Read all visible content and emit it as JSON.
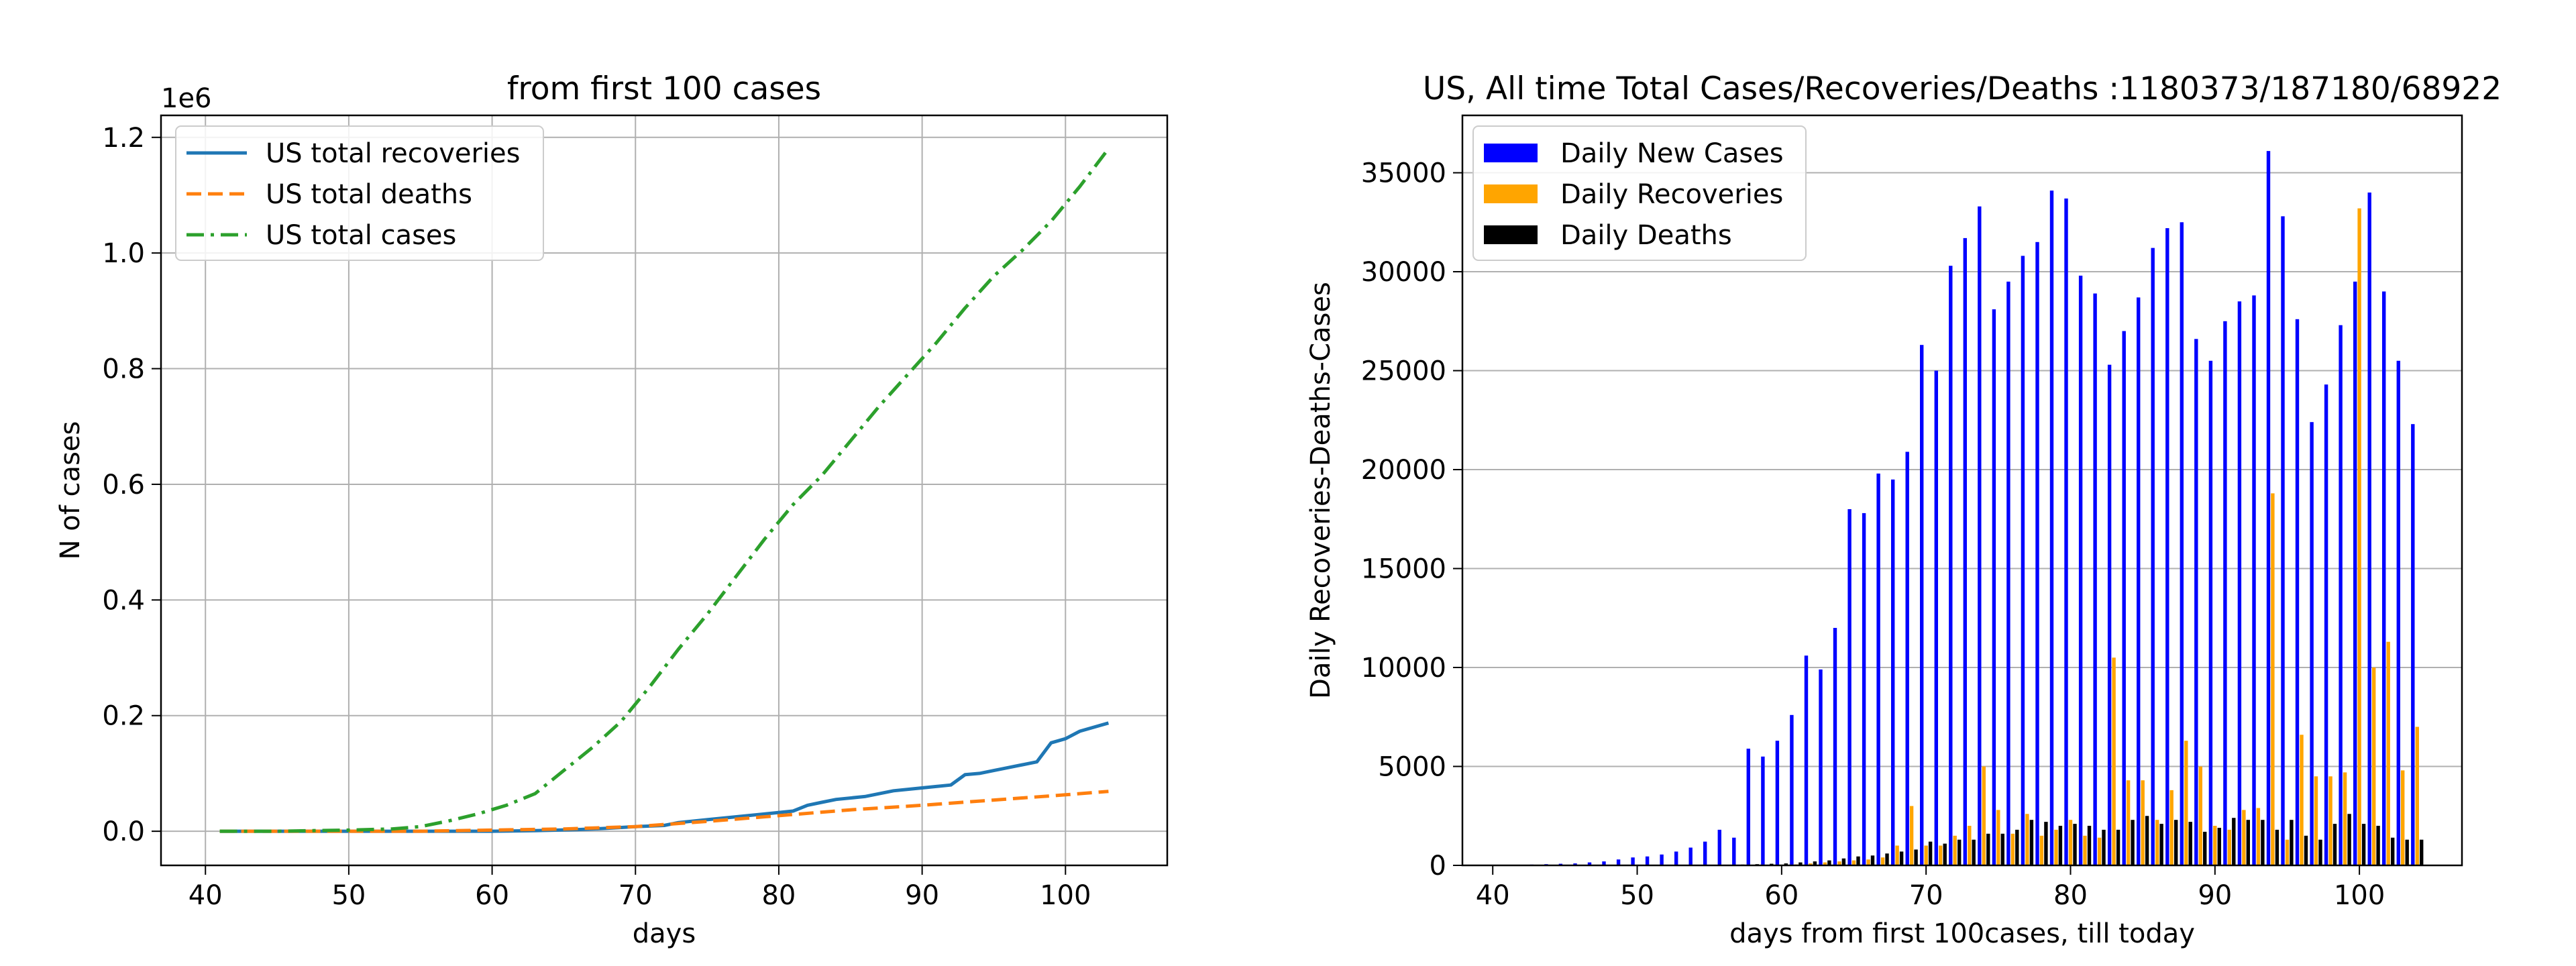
{
  "chart_data": [
    {
      "type": "line",
      "title": "from first 100  cases",
      "xlabel": "days",
      "ylabel": "N of cases",
      "y_offset_text": "1e6",
      "xlim": [
        36.9,
        107.1
      ],
      "ylim": [
        -0.059,
        1.238
      ],
      "x_ticks": [
        40,
        50,
        60,
        70,
        80,
        90,
        100
      ],
      "x_tick_labels": [
        "40",
        "50",
        "60",
        "70",
        "80",
        "90",
        "100"
      ],
      "y_ticks": [
        0.0,
        0.2,
        0.4,
        0.6,
        0.8,
        1.0,
        1.2
      ],
      "y_tick_labels": [
        "0.0",
        "0.2",
        "0.4",
        "0.6",
        "0.8",
        "1.0",
        "1.2"
      ],
      "grid": true,
      "legend_position": "top-left",
      "series": [
        {
          "name": "US total recoveries",
          "color": "#1f77b4",
          "style": "solid",
          "x": [
            41,
            45,
            50,
            55,
            60,
            63,
            66,
            68,
            70,
            72,
            73,
            75,
            77,
            79,
            81,
            82,
            83,
            84,
            86,
            88,
            90,
            92,
            93,
            94,
            95,
            97,
            98,
            99,
            100,
            101,
            103
          ],
          "y": [
            0.0,
            0.0,
            0.0,
            0.0,
            0.0,
            0.001,
            0.003,
            0.005,
            0.008,
            0.01,
            0.015,
            0.02,
            0.025,
            0.03,
            0.035,
            0.045,
            0.05,
            0.055,
            0.06,
            0.07,
            0.075,
            0.08,
            0.098,
            0.1,
            0.105,
            0.115,
            0.12,
            0.153,
            0.16,
            0.173,
            0.18718
          ]
        },
        {
          "name": "US total deaths",
          "color": "#ff7f0e",
          "style": "dashed",
          "x": [
            41,
            50,
            55,
            60,
            65,
            70,
            75,
            80,
            85,
            90,
            95,
            100,
            103
          ],
          "y": [
            0.0,
            0.0,
            0.0,
            0.002,
            0.004,
            0.008,
            0.017,
            0.027,
            0.037,
            0.045,
            0.054,
            0.063,
            0.06892
          ]
        },
        {
          "name": "US total cases",
          "color": "#2ca02c",
          "style": "dashdot",
          "x": [
            41,
            45,
            50,
            53,
            55,
            57,
            59,
            61,
            63,
            65,
            67,
            69,
            71,
            73,
            75,
            77,
            79,
            81,
            83,
            85,
            87,
            89,
            91,
            93,
            95,
            97,
            99,
            101,
            103
          ],
          "y": [
            0.0,
            0.0,
            0.002,
            0.004,
            0.008,
            0.018,
            0.03,
            0.045,
            0.065,
            0.105,
            0.145,
            0.19,
            0.25,
            0.315,
            0.375,
            0.44,
            0.505,
            0.565,
            0.615,
            0.675,
            0.735,
            0.79,
            0.845,
            0.905,
            0.96,
            1.005,
            1.055,
            1.115,
            1.18037
          ]
        }
      ]
    },
    {
      "type": "bar",
      "title": "US, All time Total Cases/Recoveries/Deaths :1180373/187180/68922",
      "xlabel": "days from first 100cases, till today",
      "ylabel": "Daily Recoveries-Deaths-Cases",
      "xlim": [
        37.9,
        107.1
      ],
      "ylim": [
        0,
        37900
      ],
      "x_ticks": [
        40,
        50,
        60,
        70,
        80,
        90,
        100
      ],
      "x_tick_labels": [
        "40",
        "50",
        "60",
        "70",
        "80",
        "90",
        "100"
      ],
      "y_ticks": [
        0,
        5000,
        10000,
        15000,
        20000,
        25000,
        30000,
        35000
      ],
      "y_tick_labels": [
        "0",
        "5000",
        "10000",
        "15000",
        "20000",
        "25000",
        "30000",
        "35000"
      ],
      "grid": "horizontal",
      "legend_position": "top-left",
      "x": [
        41,
        42,
        43,
        44,
        45,
        46,
        47,
        48,
        49,
        50,
        51,
        52,
        53,
        54,
        55,
        56,
        57,
        58,
        59,
        60,
        61,
        62,
        63,
        64,
        65,
        66,
        67,
        68,
        69,
        70,
        71,
        72,
        73,
        74,
        75,
        76,
        77,
        78,
        79,
        80,
        81,
        82,
        83,
        84,
        85,
        86,
        87,
        88,
        89,
        90,
        91,
        92,
        93,
        94,
        95,
        96,
        97,
        98,
        99,
        100,
        101,
        102,
        103,
        104
      ],
      "series": [
        {
          "name": "Daily New Cases",
          "color": "#0000ff",
          "values": [
            10,
            20,
            40,
            60,
            80,
            100,
            150,
            200,
            300,
            400,
            450,
            550,
            700,
            900,
            1200,
            1800,
            1400,
            5900,
            5500,
            6300,
            7600,
            10600,
            9900,
            12000,
            18000,
            17800,
            19800,
            19500,
            20900,
            26300,
            25000,
            30300,
            31700,
            33300,
            28100,
            29500,
            30800,
            31500,
            34100,
            33700,
            29800,
            28900,
            25300,
            27000,
            28700,
            31200,
            32200,
            32500,
            26600,
            25500,
            27500,
            28500,
            28800,
            36100,
            32800,
            27600,
            22400,
            24300,
            27300,
            29500,
            34000,
            29000,
            25500,
            22300
          ]
        },
        {
          "name": "Daily Recoveries",
          "color": "#ffa500",
          "values": [
            0,
            0,
            0,
            0,
            0,
            0,
            0,
            0,
            0,
            0,
            0,
            0,
            0,
            0,
            0,
            0,
            0,
            0,
            0,
            0,
            50,
            100,
            150,
            200,
            250,
            300,
            400,
            1000,
            3000,
            1000,
            1000,
            1500,
            2000,
            5000,
            2800,
            1600,
            2600,
            1500,
            1800,
            2300,
            1500,
            1400,
            10500,
            4300,
            4300,
            2300,
            3800,
            6300,
            5000,
            2000,
            1800,
            2800,
            2900,
            18800,
            1300,
            6600,
            4500,
            4500,
            4700,
            33200,
            10000,
            11300,
            4800,
            7000
          ]
        },
        {
          "name": "Daily Deaths",
          "color": "#000000",
          "values": [
            0,
            0,
            0,
            0,
            0,
            0,
            0,
            0,
            0,
            0,
            0,
            0,
            0,
            0,
            0,
            20,
            40,
            60,
            80,
            100,
            150,
            200,
            250,
            350,
            450,
            500,
            600,
            700,
            800,
            1200,
            1100,
            1300,
            1300,
            1600,
            1600,
            1800,
            2300,
            2200,
            2000,
            2100,
            2000,
            1800,
            1800,
            2300,
            2500,
            2100,
            2300,
            2200,
            1700,
            1900,
            2400,
            2300,
            2300,
            1800,
            2300,
            1500,
            1300,
            2100,
            2600,
            2100,
            2000,
            1400,
            1300,
            1300
          ]
        }
      ]
    }
  ]
}
